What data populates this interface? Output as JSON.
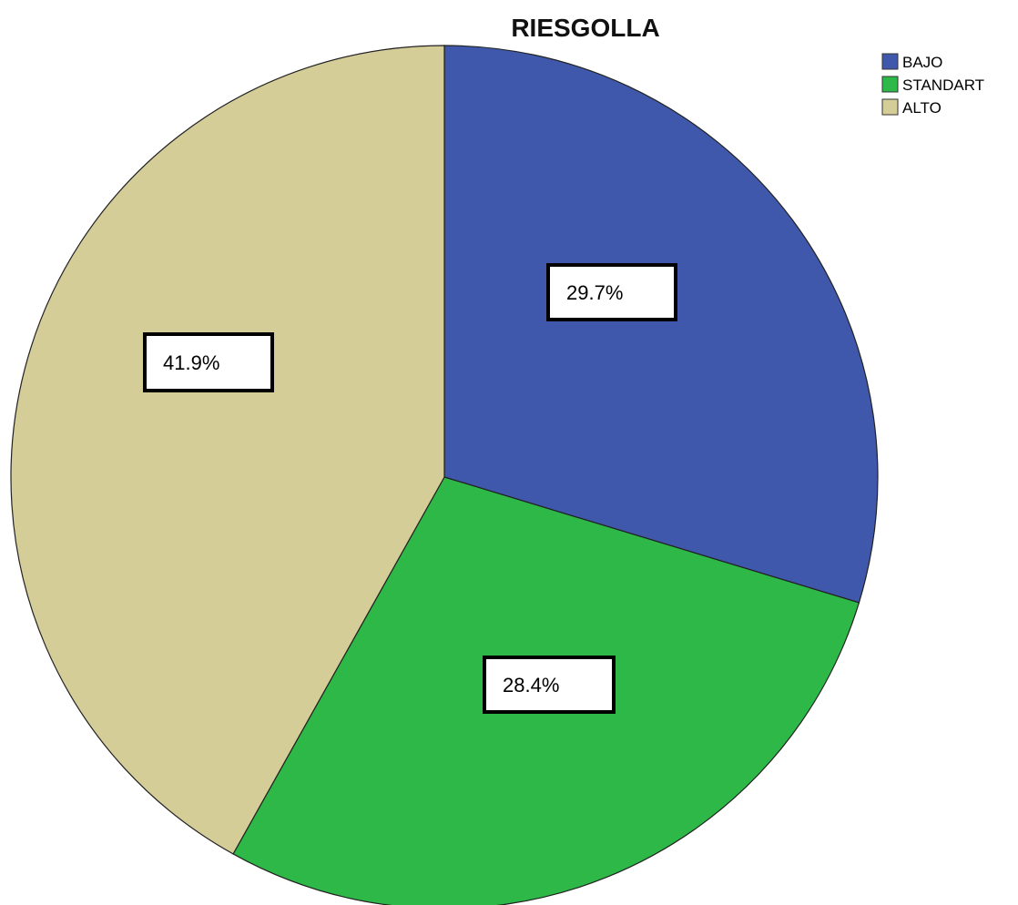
{
  "chart_data": {
    "type": "pie",
    "title": "RIESGOLLA",
    "legend_position": "top-right",
    "slices": [
      {
        "label": "BAJO",
        "value": 29.7,
        "display": "29.7%",
        "color": "#3f58ab"
      },
      {
        "label": "STANDART",
        "value": 28.4,
        "display": "28.4%",
        "color": "#2eb848"
      },
      {
        "label": "ALTO",
        "value": 41.9,
        "display": "41.9%",
        "color": "#d4cd98"
      }
    ]
  }
}
